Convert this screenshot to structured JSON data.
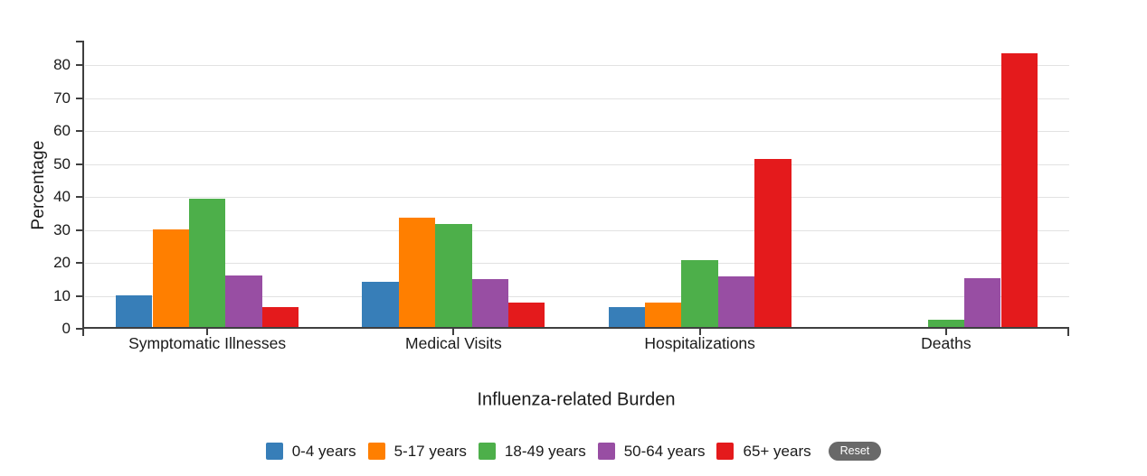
{
  "chart_data": {
    "type": "bar",
    "title": "",
    "xlabel": "Influenza-related Burden",
    "ylabel": "Percentage",
    "categories": [
      "Symptomatic Illnesses",
      "Medical Visits",
      "Hospitalizations",
      "Deaths"
    ],
    "series": [
      {
        "name": "0-4 years",
        "color": "#377eb8",
        "values": [
          9.5,
          13.7,
          6.0,
          0
        ]
      },
      {
        "name": "5-17 years",
        "color": "#ff7f00",
        "values": [
          29.7,
          33.2,
          7.4,
          0
        ]
      },
      {
        "name": "18-49 years",
        "color": "#4daf4a",
        "values": [
          38.9,
          31.2,
          20.3,
          2.2
        ]
      },
      {
        "name": "50-64 years",
        "color": "#984ea3",
        "values": [
          15.7,
          14.5,
          15.3,
          14.7
        ]
      },
      {
        "name": "65+ years",
        "color": "#e41a1c",
        "values": [
          6.0,
          7.3,
          51.0,
          83.0
        ]
      }
    ],
    "ylim": [
      0,
      80
    ],
    "yticks": [
      0,
      10,
      20,
      30,
      40,
      50,
      60,
      70,
      80
    ],
    "grid": true,
    "legend_position": "bottom"
  },
  "legend": {
    "reset_label": "Reset"
  },
  "colors": {
    "axis": "#3f3f3f",
    "grid": "#e2e2e2",
    "text": "#1a1a1a",
    "reset_bg": "#696969",
    "reset_text": "#ffffff",
    "background": "#ffffff"
  }
}
